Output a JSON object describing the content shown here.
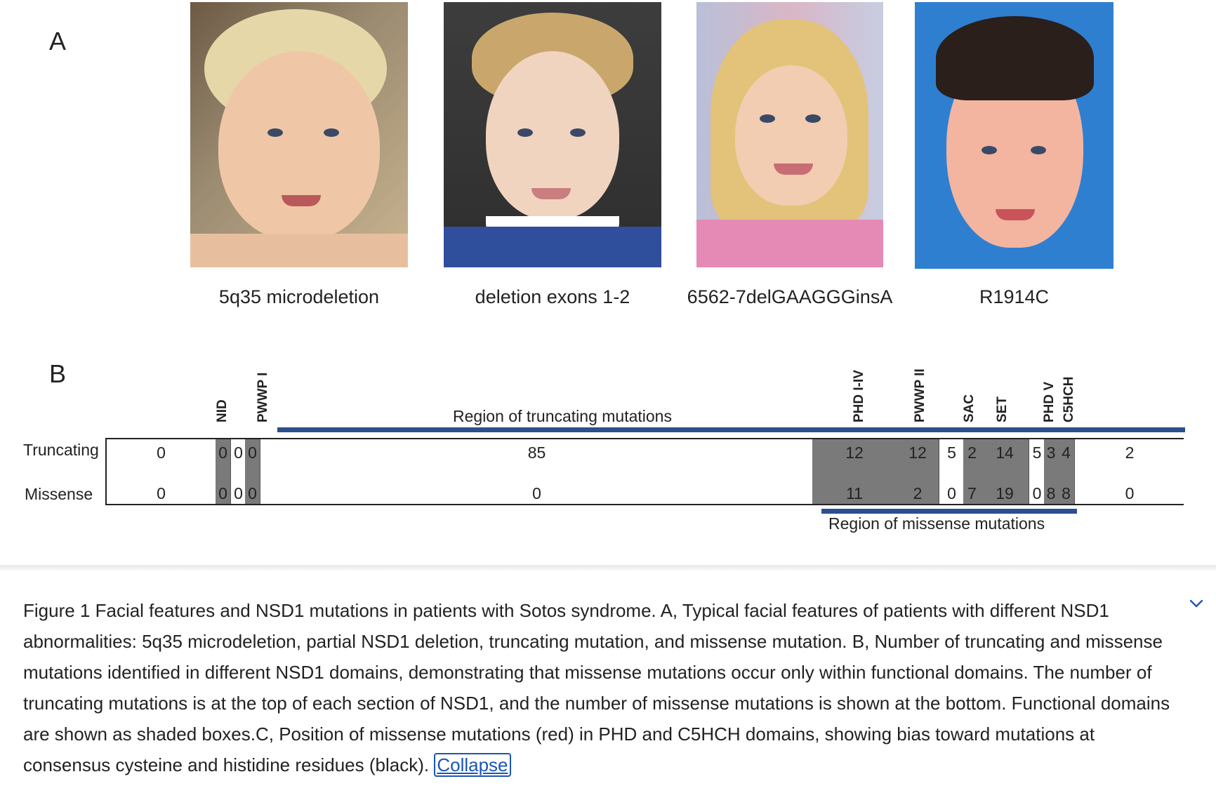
{
  "panel_a": {
    "letter": "A",
    "photos": [
      {
        "caption": "5q35 microdeletion"
      },
      {
        "caption": "deletion exons 1-2"
      },
      {
        "caption": "6562-7delGAAGGGinsA"
      },
      {
        "caption": "R1914C"
      }
    ]
  },
  "panel_b": {
    "letter": "B",
    "row_labels": {
      "truncating": "Truncating",
      "missense": "Missense"
    },
    "region_truncating": "Region of truncating mutations",
    "region_missense": "Region of missense mutations",
    "domain_labels": [
      "NID",
      "PWWP I",
      "PHD I-IV",
      "PWWP II",
      "SAC",
      "SET",
      "PHD V",
      "C5HCH"
    ],
    "cells": [
      {
        "truncating": "0",
        "missense": "0",
        "shaded": false
      },
      {
        "truncating": "0",
        "missense": "0",
        "shaded": true
      },
      {
        "truncating": "0",
        "missense": "0",
        "shaded": false
      },
      {
        "truncating": "0",
        "missense": "0",
        "shaded": true
      },
      {
        "truncating": "85",
        "missense": "0",
        "shaded": false
      },
      {
        "truncating": "12",
        "missense": "11",
        "shaded": true
      },
      {
        "truncating": "12",
        "missense": "2",
        "shaded": true
      },
      {
        "truncating": "5",
        "missense": "0",
        "shaded": false
      },
      {
        "truncating": "2",
        "missense": "7",
        "shaded": true
      },
      {
        "truncating": "14",
        "missense": "19",
        "shaded": true
      },
      {
        "truncating": "5",
        "missense": "0",
        "shaded": false
      },
      {
        "truncating": "3",
        "missense": "8",
        "shaded": true
      },
      {
        "truncating": "4",
        "missense": "8",
        "shaded": true
      },
      {
        "truncating": "2",
        "missense": "0",
        "shaded": false
      }
    ]
  },
  "caption": {
    "text": "Figure 1 Facial features and NSD1 mutations in patients with Sotos syndrome. A, Typical facial features of patients with different NSD1 abnormalities: 5q35 microdeletion, partial NSD1 deletion, truncating mutation, and missense mutation. B, Number of truncating and missense mutations identified in different NSD1 domains, demonstrating that missense mutations occur only within functional domains. The number of truncating mutations is at the top of each section of NSD1, and the number of missense mutations is shown at the bottom. Functional domains are shown as shaded boxes.C, Position of missense mutations (red) in PHD and C5HCH domains, showing bias toward mutations at consensus cysteine and histidine residues (black).",
    "collapse_label": "Collapse",
    "toggle_icon": "chevron-up-icon"
  },
  "colors": {
    "region_bar": "#2c4f8f",
    "domain_shade": "#7a7a7a",
    "link": "#1a56b7"
  }
}
